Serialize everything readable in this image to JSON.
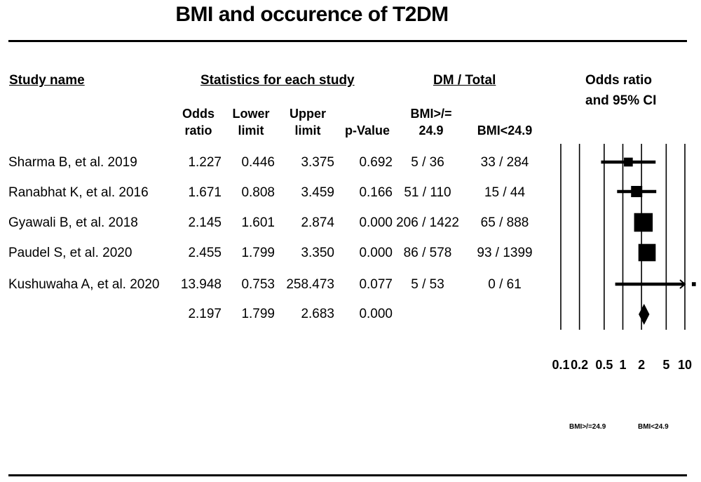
{
  "title": "BMI and occurence of T2DM",
  "headers": {
    "study_name": "Study name",
    "statistics": "Statistics for each study",
    "dm_total": "DM / Total",
    "odds_ratio_ci_line1": "Odds ratio",
    "odds_ratio_ci_line2": "and 95% CI"
  },
  "subheaders": {
    "odds_l1": "Odds",
    "odds_l2": "ratio",
    "lower_l1": "Lower",
    "lower_l2": "limit",
    "upper_l1": "Upper",
    "upper_l2": "limit",
    "pvalue": "p-Value",
    "bmi_high_l1": "BMI>/=",
    "bmi_high_l2": "24.9",
    "bmi_low": "BMI<24.9"
  },
  "rows": [
    {
      "study": "Sharma B, et al. 2019",
      "or": "1.227",
      "lower": "0.446",
      "upper": "3.375",
      "p": "0.692",
      "high": "5 / 36",
      "low": "33 / 284"
    },
    {
      "study": "Ranabhat K, et al. 2016",
      "or": "1.671",
      "lower": "0.808",
      "upper": "3.459",
      "p": "0.166",
      "high": "51 / 110",
      "low": "15 / 44"
    },
    {
      "study": "Gyawali B, et al. 2018",
      "or": "2.145",
      "lower": "1.601",
      "upper": "2.874",
      "p": "0.000",
      "high": "206 / 1422",
      "low": "65 / 888"
    },
    {
      "study": "Paudel S, et al. 2020",
      "or": "2.455",
      "lower": "1.799",
      "upper": "3.350",
      "p": "0.000",
      "high": "86 / 578",
      "low": "93 / 1399"
    },
    {
      "study": "Kushuwaha A, et al. 2020",
      "or": "13.948",
      "lower": "0.753",
      "upper": "258.473",
      "p": "0.077",
      "high": "5 / 53",
      "low": "0 / 61"
    }
  ],
  "pooled": {
    "or": "2.197",
    "lower": "1.799",
    "upper": "2.683",
    "p": "0.000"
  },
  "chart_data": {
    "type": "forest",
    "scale": "log",
    "xlim": [
      0.1,
      10
    ],
    "ticks": [
      "0.1",
      "0.2",
      "0.5",
      "1",
      "2",
      "5",
      "10"
    ],
    "tick_values": [
      0.1,
      0.2,
      0.5,
      1,
      2,
      5,
      10
    ],
    "reference_line": 1,
    "studies": [
      {
        "or": 1.227,
        "lower": 0.446,
        "upper": 3.375,
        "weight": 0.1
      },
      {
        "or": 1.671,
        "lower": 0.808,
        "upper": 3.459,
        "weight": 0.16
      },
      {
        "or": 2.145,
        "lower": 1.601,
        "upper": 2.874,
        "weight": 0.44
      },
      {
        "or": 2.455,
        "lower": 1.799,
        "upper": 3.35,
        "weight": 0.38
      },
      {
        "or": 13.948,
        "lower": 0.753,
        "upper": 258.473,
        "weight": 0.02
      }
    ],
    "summary": {
      "or": 2.197,
      "lower": 1.799,
      "upper": 2.683
    },
    "favours_left": "BMI>/=24.9",
    "favours_right": "BMI<24.9"
  }
}
